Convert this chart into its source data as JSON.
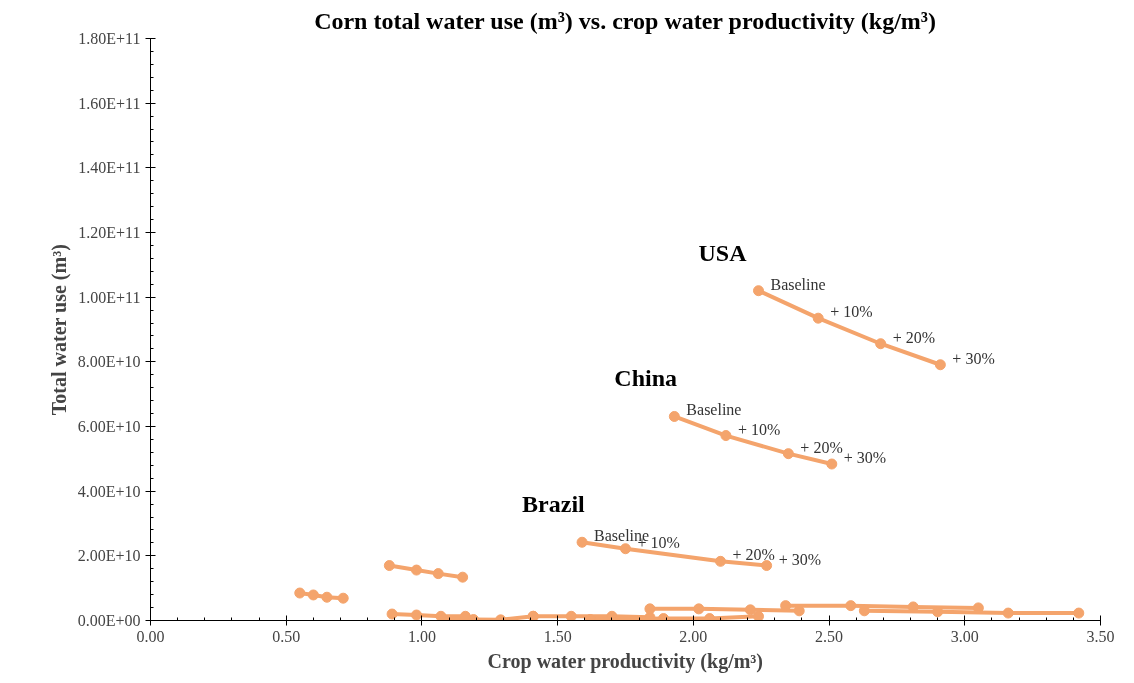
{
  "chart_data": {
    "type": "line",
    "title": "Corn total water use (m³) vs. crop water productivity (kg/m³)",
    "xlabel": "Crop water productivity (kg/m³)",
    "ylabel": "Total water use (m³)",
    "xlim": [
      0,
      3.5
    ],
    "ylim": [
      0,
      180000000000
    ],
    "xticks": [
      {
        "value": 0,
        "label": "0.00"
      },
      {
        "value": 0.5,
        "label": "0.50"
      },
      {
        "value": 1,
        "label": "1.00"
      },
      {
        "value": 1.5,
        "label": "1.50"
      },
      {
        "value": 2,
        "label": "2.00"
      },
      {
        "value": 2.5,
        "label": "2.50"
      },
      {
        "value": 3,
        "label": "3.00"
      },
      {
        "value": 3.5,
        "label": "3.50"
      }
    ],
    "yticks": [
      {
        "value": 0,
        "label": "0.00E+00"
      },
      {
        "value": 20000000000,
        "label": "2.00E+10"
      },
      {
        "value": 40000000000,
        "label": "4.00E+10"
      },
      {
        "value": 60000000000,
        "label": "6.00E+10"
      },
      {
        "value": 80000000000,
        "label": "8.00E+10"
      },
      {
        "value": 100000000000,
        "label": "1.00E+11"
      },
      {
        "value": 120000000000,
        "label": "1.20E+11"
      },
      {
        "value": 140000000000,
        "label": "1.40E+11"
      },
      {
        "value": 160000000000,
        "label": "1.60E+11"
      },
      {
        "value": 180000000000,
        "label": "1.80E+11"
      }
    ],
    "grid": false,
    "marker": "circle",
    "line_style": "solid",
    "series": [
      {
        "name": "USA",
        "color": "#f4a46c",
        "x": [
          2.24,
          2.46,
          2.69,
          2.91
        ],
        "values": [
          102000000000,
          93500000000,
          85600000000,
          79100000000
        ]
      },
      {
        "name": "China",
        "color": "#f4a46c",
        "x": [
          1.93,
          2.12,
          2.35,
          2.51
        ],
        "values": [
          63100000000,
          57200000000,
          51600000000,
          48400000000
        ]
      },
      {
        "name": "Brazil",
        "color": "#f4a46c",
        "x": [
          1.59,
          1.75,
          2.1,
          2.27
        ],
        "values": [
          24200000000,
          22200000000,
          18300000000,
          17000000000
        ]
      },
      {
        "color": "#f4a46c",
        "x": [
          0.55,
          0.6,
          0.65,
          0.71
        ],
        "values": [
          8500000000,
          7900000000,
          7200000000,
          6900000000
        ]
      },
      {
        "color": "#f4a46c",
        "x": [
          0.88,
          0.98,
          1.06,
          1.15
        ],
        "values": [
          17000000000,
          15600000000,
          14500000000,
          13400000000
        ]
      },
      {
        "color": "#f4a46c",
        "x": [
          0.89,
          0.98,
          1.07,
          1.16
        ],
        "values": [
          2000000000,
          1700000000,
          1300000000,
          1300000000
        ]
      },
      {
        "color": "#f4a46c",
        "x": [
          1.08,
          1.19,
          1.29,
          1.41
        ],
        "values": [
          300000000,
          300000000,
          200000000,
          1300000000
        ]
      },
      {
        "color": "#f4a46c",
        "x": [
          1.41,
          1.55,
          1.7,
          1.84
        ],
        "values": [
          1300000000,
          1300000000,
          1300000000,
          1000000000
        ]
      },
      {
        "color": "#f4a46c",
        "x": [
          1.62,
          1.89,
          2.06,
          2.24
        ],
        "values": [
          300000000,
          600000000,
          600000000,
          1300000000
        ]
      },
      {
        "color": "#f4a46c",
        "x": [
          1.84,
          2.02,
          2.21,
          2.39
        ],
        "values": [
          3600000000,
          3600000000,
          3300000000,
          3000000000
        ]
      },
      {
        "color": "#f4a46c",
        "x": [
          2.34,
          2.58,
          2.81,
          3.05
        ],
        "values": [
          4600000000,
          4600000000,
          4200000000,
          3900000000
        ]
      },
      {
        "color": "#f4a46c",
        "x": [
          2.63,
          2.9,
          3.16,
          3.42
        ],
        "values": [
          3000000000,
          2700000000,
          2300000000,
          2300000000
        ]
      }
    ],
    "annotations": [
      {
        "text": "Baseline",
        "x": 2.24,
        "y": 102000000000
      },
      {
        "text": "+ 10%",
        "x": 2.46,
        "y": 93500000000
      },
      {
        "text": "+ 20%",
        "x": 2.69,
        "y": 85600000000
      },
      {
        "text": "+ 30%",
        "x": 2.91,
        "y": 79100000000
      },
      {
        "text": "Baseline",
        "x": 1.93,
        "y": 63100000000
      },
      {
        "text": "+ 10%",
        "x": 2.12,
        "y": 57200000000
      },
      {
        "text": "+ 20%",
        "x": 2.35,
        "y": 51600000000
      },
      {
        "text": "+ 30%",
        "x": 2.51,
        "y": 48400000000
      },
      {
        "text": "Baseline",
        "x": 1.59,
        "y": 24200000000
      },
      {
        "text": "+ 10%",
        "x": 1.75,
        "y": 22200000000
      },
      {
        "text": "+ 20%",
        "x": 2.1,
        "y": 18300000000
      },
      {
        "text": "+ 30%",
        "x": 2.27,
        "y": 17000000000
      }
    ]
  }
}
